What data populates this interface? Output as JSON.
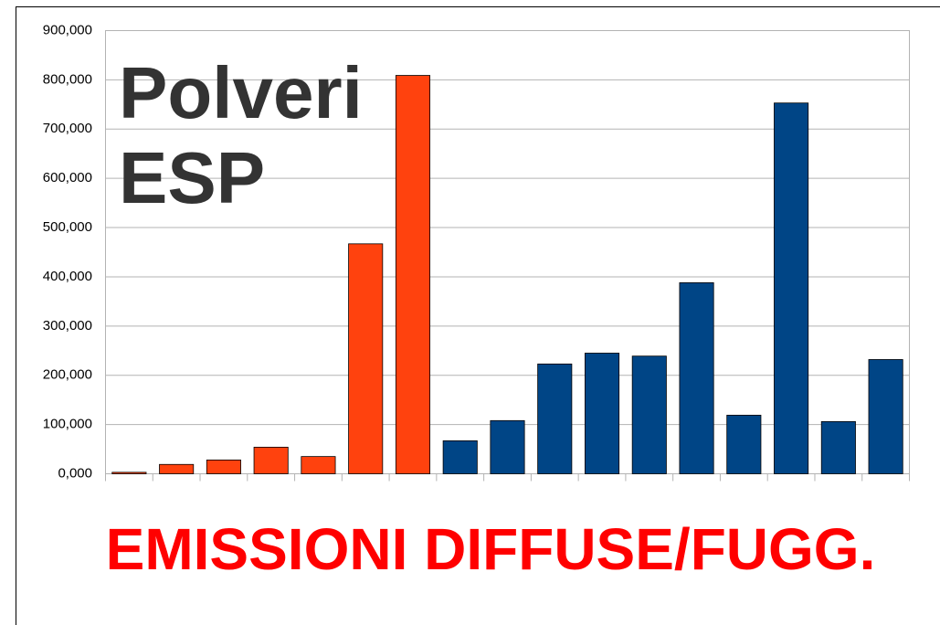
{
  "chart_data": {
    "type": "bar",
    "annotations": [
      "Polveri",
      "ESP"
    ],
    "footer": "EMISSIONI DIFFUSE/FUGG.",
    "categories": [
      null,
      null,
      null,
      null,
      null,
      null,
      null,
      null,
      null,
      null,
      null,
      null,
      null,
      null,
      null,
      null,
      null
    ],
    "values": [
      3,
      19,
      28,
      54,
      35,
      467,
      809,
      67,
      108,
      223,
      245,
      239,
      388,
      119,
      753,
      106,
      232
    ],
    "colors": [
      "#ff420e",
      "#ff420e",
      "#ff420e",
      "#ff420e",
      "#ff420e",
      "#ff420e",
      "#ff420e",
      "#004586",
      "#004586",
      "#004586",
      "#004586",
      "#004586",
      "#004586",
      "#004586",
      "#004586",
      "#004586",
      "#004586"
    ],
    "ylim": [
      0,
      900
    ],
    "yticks": [
      {
        "value": 0,
        "label": "0,000"
      },
      {
        "value": 100,
        "label": "100,000"
      },
      {
        "value": 200,
        "label": "200,000"
      },
      {
        "value": 300,
        "label": "300,000"
      },
      {
        "value": 400,
        "label": "400,000"
      },
      {
        "value": 500,
        "label": "500,000"
      },
      {
        "value": 600,
        "label": "600,000"
      },
      {
        "value": 700,
        "label": "700,000"
      },
      {
        "value": 800,
        "label": "800,000"
      },
      {
        "value": 900,
        "label": "900,000"
      }
    ],
    "grid": true
  }
}
